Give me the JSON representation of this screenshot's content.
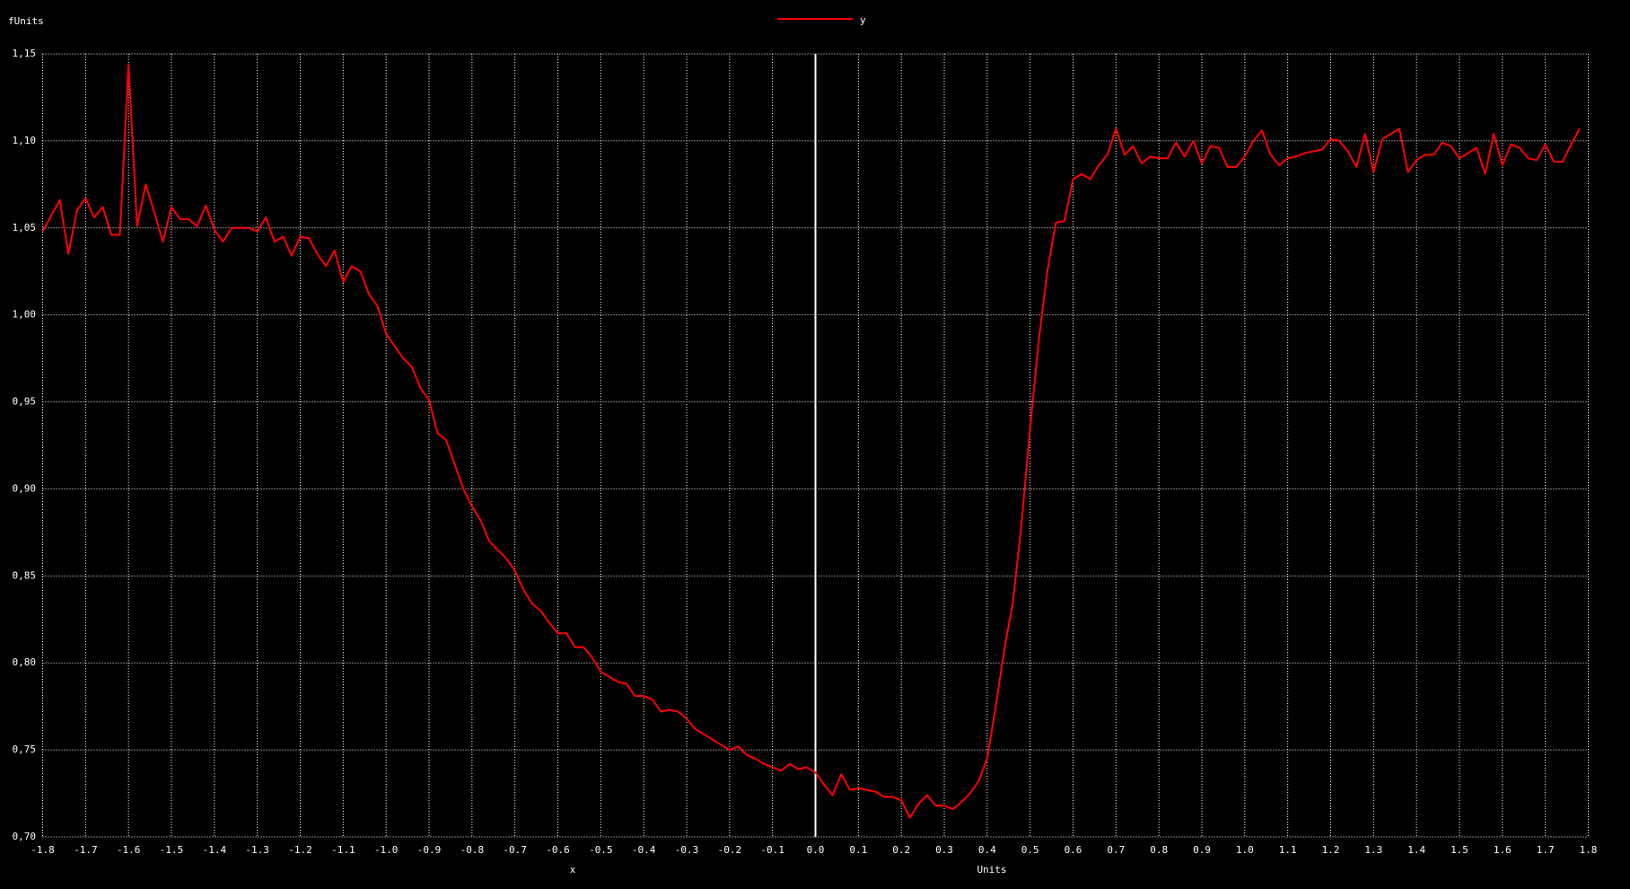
{
  "chart_data": {
    "type": "line",
    "ylabel": "fUnits",
    "xlabel": "x",
    "xunit": "Units",
    "legend": "top-center",
    "grid": true,
    "xlim": [
      -1.8,
      1.8
    ],
    "ylim": [
      0.7,
      1.15
    ],
    "xticks": [
      -1.8,
      -1.7,
      -1.6,
      -1.5,
      -1.4,
      -1.3,
      -1.2,
      -1.1,
      {
        "value": -1.0,
        "label": "-1.0"
      },
      -0.9,
      -0.8,
      -0.7,
      -0.6,
      -0.5,
      -0.4,
      -0.3,
      -0.2,
      -0.1,
      {
        "value": 0,
        "label": "0.0"
      },
      0.1,
      0.2,
      0.3,
      0.4,
      0.5,
      0.6,
      0.7,
      0.8,
      0.9,
      {
        "value": 1.0,
        "label": "1.0"
      },
      1.1,
      1.2,
      1.3,
      1.4,
      1.5,
      1.6,
      1.7,
      1.8
    ],
    "yticks": [
      {
        "value": 0.7,
        "label": "0,70"
      },
      {
        "value": 0.75,
        "label": "0,75"
      },
      {
        "value": 0.8,
        "label": "0,80"
      },
      {
        "value": 0.85,
        "label": "0,85"
      },
      {
        "value": 0.9,
        "label": "0,90"
      },
      {
        "value": 0.95,
        "label": "0,95"
      },
      {
        "value": 1.0,
        "label": "1,00"
      },
      {
        "value": 1.05,
        "label": "1,05"
      },
      {
        "value": 1.1,
        "label": "1,10"
      },
      {
        "value": 1.15,
        "label": "1,15"
      }
    ],
    "x": [
      -1.8,
      -1.78,
      -1.76,
      -1.74,
      -1.72,
      -1.7,
      -1.68,
      -1.66,
      -1.64,
      -1.62,
      -1.6,
      -1.58,
      -1.56,
      -1.54,
      -1.52,
      -1.5,
      -1.48,
      -1.46,
      -1.44,
      -1.42,
      -1.4,
      -1.38,
      -1.36,
      -1.34,
      -1.32,
      -1.3,
      -1.28,
      -1.26,
      -1.24,
      -1.22,
      -1.2,
      -1.18,
      -1.16,
      -1.14,
      -1.12,
      -1.1,
      -1.08,
      -1.06,
      -1.04,
      -1.02,
      -1.0,
      -0.98,
      -0.96,
      -0.94,
      -0.92,
      -0.9,
      -0.88,
      -0.86,
      -0.84,
      -0.82,
      -0.8,
      -0.78,
      -0.76,
      -0.74,
      -0.72,
      -0.7,
      -0.68,
      -0.66,
      -0.64,
      -0.62,
      -0.6,
      -0.58,
      -0.56,
      -0.54,
      -0.52,
      -0.5,
      -0.48,
      -0.46,
      -0.44,
      -0.42,
      -0.4,
      -0.38,
      -0.36,
      -0.34,
      -0.32,
      -0.3,
      -0.28,
      -0.26,
      -0.24,
      -0.22,
      -0.2,
      -0.18,
      -0.16,
      -0.14,
      -0.12,
      -0.1,
      -0.08,
      -0.06,
      -0.04,
      -0.02,
      0.0,
      0.02,
      0.04,
      0.06,
      0.08,
      0.1,
      0.12,
      0.14,
      0.16,
      0.18,
      0.2,
      0.22,
      0.24,
      0.26,
      0.28,
      0.3,
      0.32,
      0.34,
      0.36,
      0.38,
      0.4,
      0.42,
      0.44,
      0.46,
      0.48,
      0.5,
      0.52,
      0.54,
      0.56,
      0.58,
      0.6,
      0.62,
      0.64,
      0.66,
      0.68,
      0.7,
      0.72,
      0.74,
      0.76,
      0.78,
      0.8,
      0.82,
      0.84,
      0.86,
      0.88,
      0.9,
      0.92,
      0.94,
      0.96,
      0.98,
      1.0,
      1.02,
      1.04,
      1.06,
      1.08,
      1.1,
      1.12,
      1.14,
      1.16,
      1.18,
      1.2,
      1.22,
      1.24,
      1.26,
      1.28,
      1.3,
      1.32,
      1.34,
      1.36,
      1.38,
      1.4,
      1.42,
      1.44,
      1.46,
      1.48,
      1.5,
      1.52,
      1.54,
      1.56,
      1.58,
      1.6,
      1.62,
      1.64,
      1.66,
      1.68,
      1.7,
      1.72,
      1.74,
      1.76,
      1.78
    ],
    "series": [
      {
        "name": "y",
        "color": "#ff0000",
        "values": [
          1.048,
          1.057,
          1.066,
          1.035,
          1.06,
          1.067,
          1.056,
          1.062,
          1.046,
          1.046,
          1.144,
          1.051,
          1.075,
          1.059,
          1.042,
          1.062,
          1.055,
          1.055,
          1.051,
          1.063,
          1.049,
          1.042,
          1.05,
          1.05,
          1.05,
          1.048,
          1.056,
          1.042,
          1.045,
          1.034,
          1.045,
          1.044,
          1.035,
          1.028,
          1.037,
          1.019,
          1.028,
          1.025,
          1.012,
          1.005,
          0.989,
          0.982,
          0.975,
          0.97,
          0.958,
          0.951,
          0.932,
          0.928,
          0.914,
          0.9,
          0.89,
          0.882,
          0.87,
          0.865,
          0.86,
          0.853,
          0.842,
          0.834,
          0.83,
          0.823,
          0.817,
          0.817,
          0.809,
          0.809,
          0.803,
          0.795,
          0.792,
          0.789,
          0.788,
          0.781,
          0.781,
          0.779,
          0.772,
          0.773,
          0.772,
          0.768,
          0.762,
          0.759,
          0.756,
          0.753,
          0.75,
          0.752,
          0.747,
          0.745,
          0.742,
          0.74,
          0.738,
          0.742,
          0.739,
          0.74,
          0.737,
          0.73,
          0.724,
          0.736,
          0.727,
          0.728,
          0.727,
          0.726,
          0.723,
          0.723,
          0.721,
          0.711,
          0.719,
          0.724,
          0.718,
          0.718,
          0.716,
          0.72,
          0.725,
          0.732,
          0.745,
          0.775,
          0.808,
          0.835,
          0.88,
          0.935,
          0.985,
          1.025,
          1.053,
          1.054,
          1.078,
          1.081,
          1.078,
          1.086,
          1.092,
          1.107,
          1.092,
          1.097,
          1.087,
          1.091,
          1.09,
          1.09,
          1.099,
          1.091,
          1.1,
          1.087,
          1.097,
          1.096,
          1.085,
          1.085,
          1.091,
          1.1,
          1.106,
          1.092,
          1.086,
          1.09,
          1.091,
          1.093,
          1.094,
          1.095,
          1.101,
          1.1,
          1.094,
          1.085,
          1.104,
          1.082,
          1.101,
          1.104,
          1.107,
          1.082,
          1.089,
          1.092,
          1.092,
          1.099,
          1.097,
          1.09,
          1.093,
          1.096,
          1.081,
          1.104,
          1.086,
          1.098,
          1.096,
          1.09,
          1.089,
          1.098,
          1.088,
          1.088,
          1.098,
          1.107
        ]
      }
    ]
  }
}
